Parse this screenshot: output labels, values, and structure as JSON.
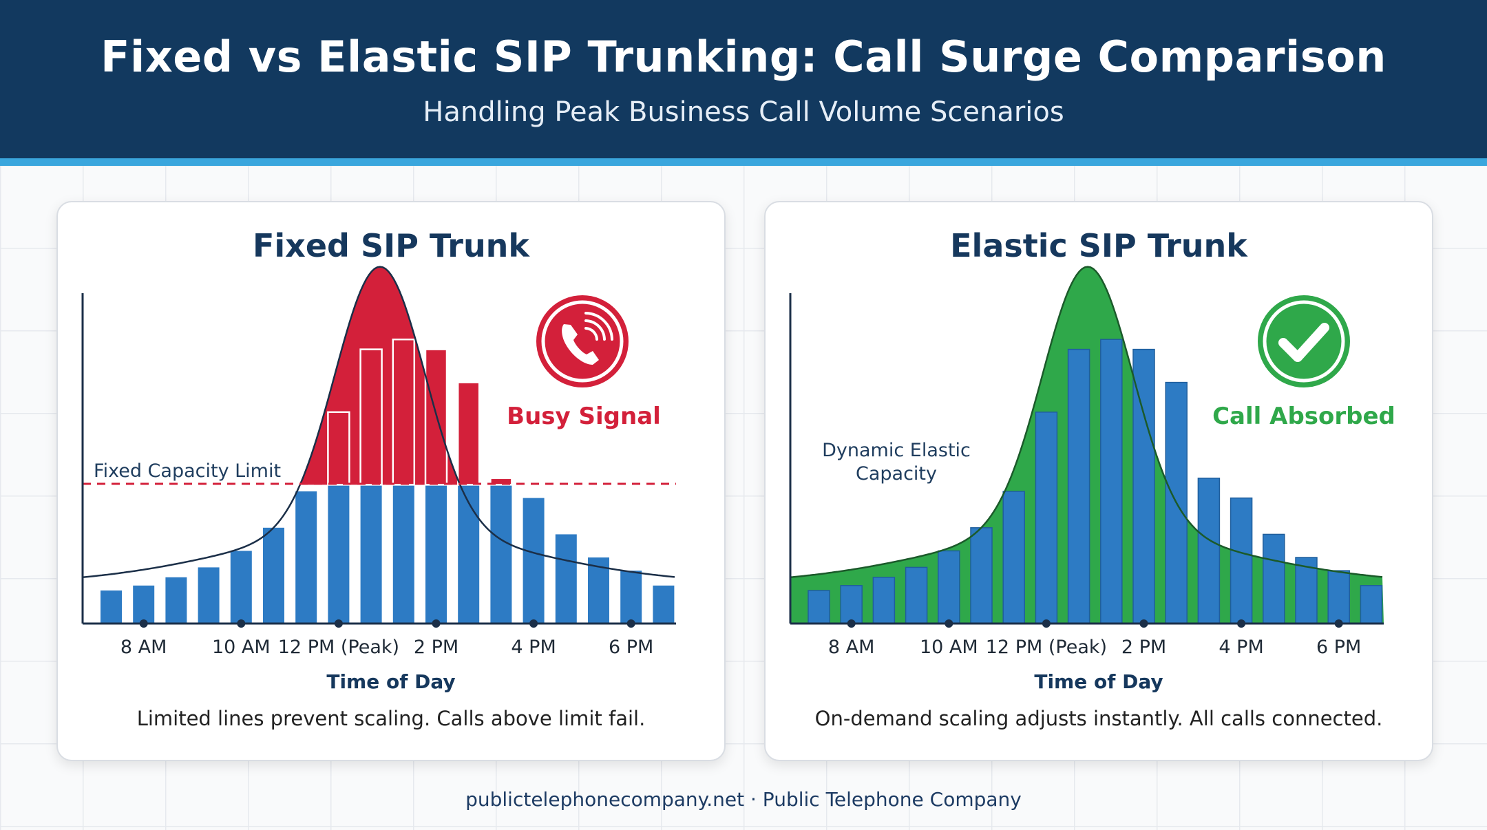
{
  "header": {
    "title": "Fixed vs Elastic SIP Trunking: Call Surge Comparison",
    "subtitle": "Handling Peak Business Call Volume Scenarios"
  },
  "footer": {
    "text": "publictelephonecompany.net · Public Telephone Company"
  },
  "colors": {
    "header_bg": "#12395f",
    "accent_stripe": "#3aa6dd",
    "bar_blue": "#2d7bc4",
    "overflow_red": "#d3203a",
    "elastic_green": "#2fa84a"
  },
  "chart_data": [
    {
      "type": "bar",
      "title": "Fixed SIP Trunk",
      "xlabel": "Time of Day",
      "ylabel": "",
      "x_ticks": [
        "8 AM",
        "10 AM",
        "12 PM (Peak)",
        "2 PM",
        "4 PM",
        "6 PM"
      ],
      "bar_count": 18,
      "values": [
        10,
        11.5,
        14,
        17,
        22,
        29,
        40,
        64,
        83,
        86,
        83,
        73,
        44,
        38,
        27,
        20,
        16,
        11.5
      ],
      "capacity_limit": 42,
      "capacity_label": "Fixed Capacity Limit",
      "demand_curve": "bell",
      "status_label": "Busy Signal",
      "status_icon": "phone-ringing-icon",
      "caption": "Limited lines prevent scaling. Calls above limit fail.",
      "grid": false,
      "ylim": [
        0,
        100
      ]
    },
    {
      "type": "bar",
      "title": "Elastic SIP Trunk",
      "xlabel": "Time of Day",
      "ylabel": "",
      "x_ticks": [
        "8 AM",
        "10 AM",
        "12 PM (Peak)",
        "2 PM",
        "4 PM",
        "6 PM"
      ],
      "bar_count": 18,
      "values": [
        10,
        11.5,
        14,
        17,
        22,
        29,
        40,
        64,
        83,
        86,
        83,
        73,
        44,
        38,
        27,
        20,
        16,
        11.5
      ],
      "capacity_label": "Dynamic Elastic Capacity",
      "demand_curve": "bell",
      "status_label": "Call Absorbed",
      "status_icon": "check-icon",
      "caption": "On-demand scaling adjusts instantly. All calls connected.",
      "grid": false,
      "ylim": [
        0,
        100
      ]
    }
  ]
}
